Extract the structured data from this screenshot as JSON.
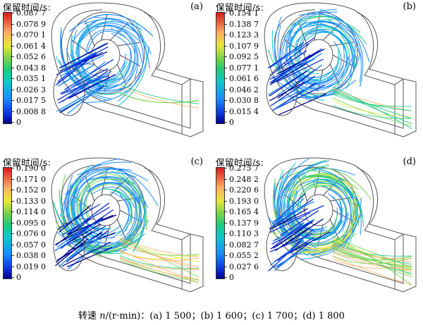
{
  "colorbar_title": "保留时间/s:",
  "panels": [
    {
      "label": "(a)",
      "ticks": [
        "0.087 7",
        "0.078 9",
        "0.070 1",
        "0.061 4",
        "0.052 6",
        "0.043 8",
        "0.035 1",
        "0.026 3",
        "0.017 5",
        "0.008 8",
        "0"
      ]
    },
    {
      "label": "(b)",
      "ticks": [
        "0.154 1",
        "0.138 7",
        "0.123 3",
        "0.107 9",
        "0.092 5",
        "0.077 1",
        "0.061 6",
        "0.046 2",
        "0.030 8",
        "0.015 4",
        "0"
      ]
    },
    {
      "label": "(c)",
      "ticks": [
        "0.190 0",
        "0.171 0",
        "0.152 0",
        "0.133 0",
        "0.114 0",
        "0.095 0",
        "0.076 0",
        "0.057 0",
        "0.038 0",
        "0.019 0",
        "0"
      ]
    },
    {
      "label": "(d)",
      "ticks": [
        "0.275 7",
        "0.248 2",
        "0.220 6",
        "0.193 0",
        "0.165 4",
        "0.137 9",
        "0.110 3",
        "0.082 7",
        "0.055 2",
        "0.027 6",
        "0"
      ]
    }
  ],
  "caption": {
    "prefix": "转速 ",
    "var": "n",
    "rest": "/(r·min)：(a) 1 500；(b) 1 600；(c) 1 700；(d) 1 800"
  },
  "colors": {
    "outline": "#555555",
    "blade": "#333333",
    "streamline_scale": [
      "#00008b",
      "#0b2fd6",
      "#1a8bff",
      "#10c8c8",
      "#1ec97f",
      "#6fd24a",
      "#e8e83a",
      "#fdae61",
      "#d7191c"
    ]
  }
}
